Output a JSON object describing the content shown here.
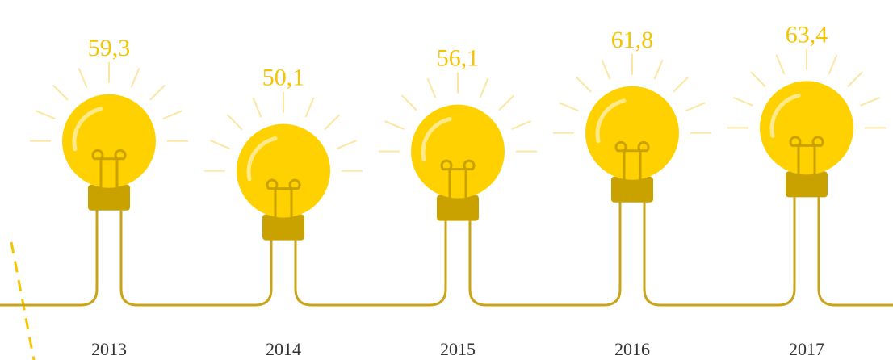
{
  "chart_data": {
    "type": "bulb",
    "categories": [
      "2013",
      "2014",
      "2015",
      "2016",
      "2017"
    ],
    "values": [
      59.3,
      50.1,
      56.1,
      61.8,
      63.4
    ],
    "value_labels": [
      "59,3",
      "50,1",
      "56,1",
      "61,8",
      "63,4"
    ],
    "color": "#FFD100"
  }
}
